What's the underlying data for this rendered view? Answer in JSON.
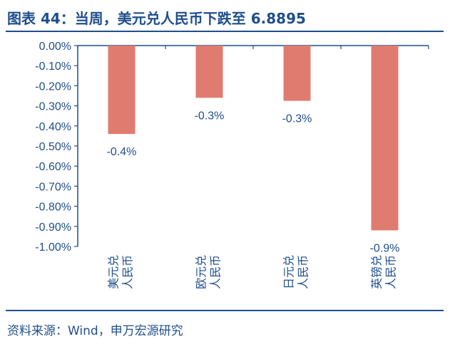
{
  "title": "图表 44：当周，美元兑人民币下跌至 6.8895",
  "source": "资料来源：Wind，申万宏源研究",
  "colors": {
    "bar": "#e07b70",
    "axis": "#1f4e8c",
    "text": "#1f4e8c"
  },
  "chart_data": {
    "type": "bar",
    "title": "",
    "xlabel": "",
    "ylabel": "",
    "categories": [
      [
        "美元兑",
        "人民币"
      ],
      [
        "欧元兑",
        "人民币"
      ],
      [
        "日元兑",
        "人民币"
      ],
      [
        "英镑兑",
        "人民币"
      ]
    ],
    "values": [
      -0.44,
      -0.26,
      -0.275,
      -0.92
    ],
    "data_labels": [
      "-0.4%",
      "-0.3%",
      "-0.3%",
      "-0.9%"
    ],
    "ylim": [
      -1.0,
      0.0
    ],
    "yticks": [
      0.0,
      -0.1,
      -0.2,
      -0.3,
      -0.4,
      -0.5,
      -0.6,
      -0.7,
      -0.8,
      -0.9,
      -1.0
    ],
    "ytick_labels": [
      "0.00%",
      "-0.10%",
      "-0.20%",
      "-0.30%",
      "-0.40%",
      "-0.50%",
      "-0.60%",
      "-0.70%",
      "-0.80%",
      "-0.90%",
      "-1.00%"
    ],
    "grid": false,
    "legend": "none"
  }
}
